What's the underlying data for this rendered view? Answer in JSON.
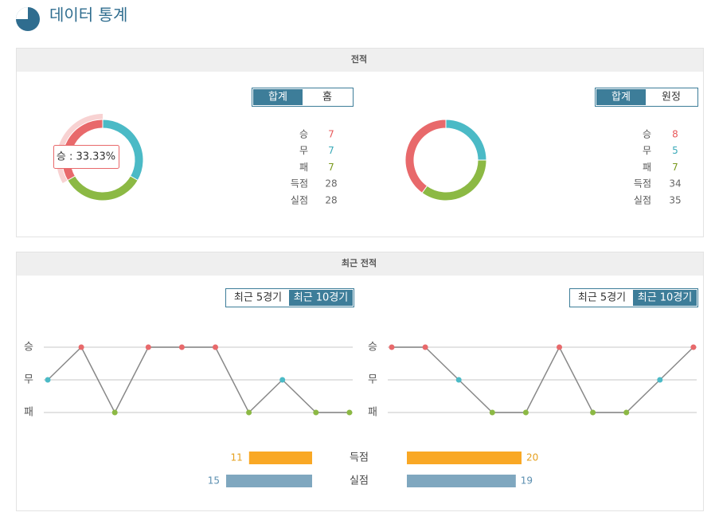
{
  "header": {
    "title": "데이터 통계"
  },
  "result_colors": {
    "승": "#e8696b",
    "무": "#4bbac6",
    "패": "#8cb944"
  },
  "record": {
    "title": "전적",
    "panels": [
      {
        "tabs": [
          "합계",
          "홈"
        ],
        "active_tab": 0,
        "tooltip": "승 : 33.33%",
        "stats": [
          {
            "label": "승",
            "value": 7,
            "color": "#e8585a"
          },
          {
            "label": "무",
            "value": 7,
            "color": "#3aa9b8"
          },
          {
            "label": "패",
            "value": 7,
            "color": "#7a9a1e"
          },
          {
            "label": "득점",
            "value": 28,
            "color": "#666666"
          },
          {
            "label": "실점",
            "value": 28,
            "color": "#666666"
          }
        ]
      },
      {
        "tabs": [
          "합계",
          "원정"
        ],
        "active_tab": 0,
        "stats": [
          {
            "label": "승",
            "value": 8,
            "color": "#e8585a"
          },
          {
            "label": "무",
            "value": 5,
            "color": "#3aa9b8"
          },
          {
            "label": "패",
            "value": 7,
            "color": "#7a9a1e"
          },
          {
            "label": "득점",
            "value": 34,
            "color": "#666666"
          },
          {
            "label": "실점",
            "value": 35,
            "color": "#666666"
          }
        ]
      }
    ]
  },
  "recent": {
    "title": "최근 전적",
    "levels": [
      "승",
      "무",
      "패"
    ],
    "panels": [
      {
        "tabs": [
          "최근 5경기",
          "최근 10경기"
        ],
        "active_tab": 1,
        "results": [
          "무",
          "승",
          "패",
          "승",
          "승",
          "승",
          "패",
          "무",
          "패",
          "패"
        ]
      },
      {
        "tabs": [
          "최근 5경기",
          "최근 10경기"
        ],
        "active_tab": 1,
        "results": [
          "승",
          "승",
          "무",
          "패",
          "패",
          "승",
          "패",
          "패",
          "무",
          "승"
        ]
      }
    ],
    "bars": [
      {
        "label": "득점",
        "values": [
          11,
          20
        ],
        "color": "#f9a825",
        "label_color": "#e6a01e"
      },
      {
        "label": "실점",
        "values": [
          15,
          19
        ],
        "color": "#7fa7bf",
        "label_color": "#5b8fb0"
      }
    ]
  }
}
